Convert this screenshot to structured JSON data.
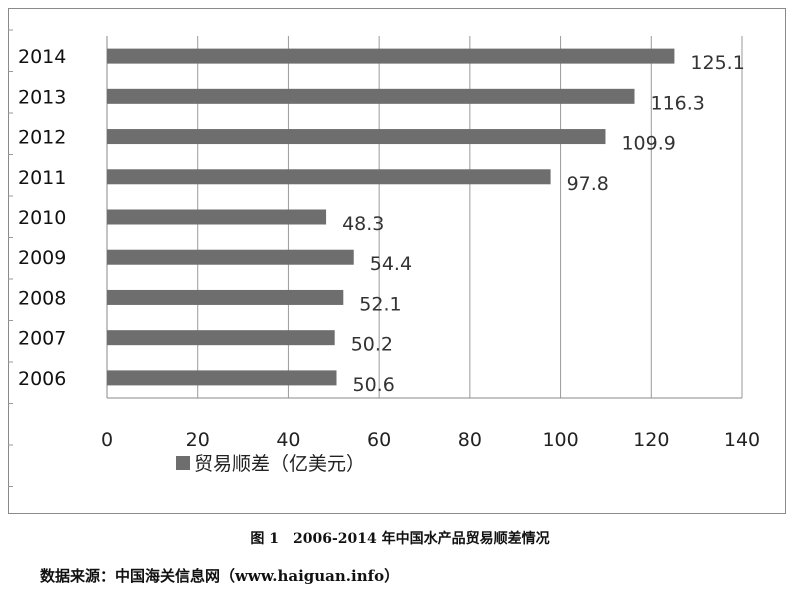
{
  "chart_data": {
    "type": "bar",
    "orientation": "horizontal",
    "categories": [
      "2014",
      "2013",
      "2012",
      "2011",
      "2010",
      "2009",
      "2008",
      "2007",
      "2006"
    ],
    "series": [
      {
        "name": "贸易顺差（亿美元）",
        "values": [
          125.1,
          116.3,
          109.9,
          97.8,
          48.3,
          54.4,
          52.1,
          50.2,
          50.6
        ]
      }
    ],
    "data_labels": [
      "125.1",
      "116.3",
      "109.9",
      "97.8",
      "48.3",
      "54.4",
      "52.1",
      "50.2",
      "50.6"
    ],
    "xlim": [
      0,
      140
    ],
    "x_ticks": [
      "0",
      "20",
      "40",
      "60",
      "80",
      "100",
      "120",
      "140"
    ],
    "x_tick_values": [
      0,
      20,
      40,
      60,
      80,
      100,
      120,
      140
    ],
    "grid": "vertical",
    "legend_position": "bottom-left",
    "bar_color": "#6e6e6e",
    "grid_color": "#9a9a9a"
  },
  "caption": "图 1　2006-2014 年中国水产品贸易顺差情况",
  "source": "数据来源：中国海关信息网（www.haiguan.info）"
}
